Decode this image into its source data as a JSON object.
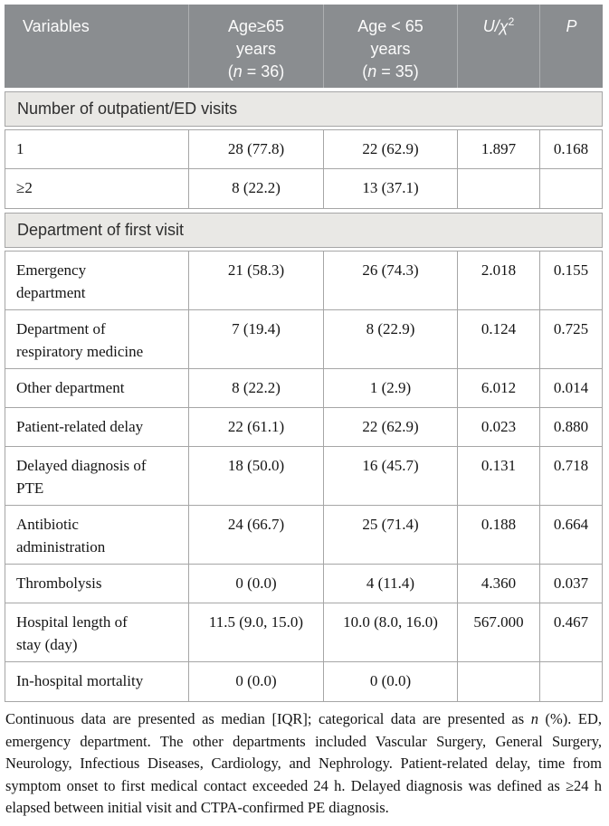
{
  "colors": {
    "header_bg": "#8a8d90",
    "header_text": "#fbfbfb",
    "section_bg": "#e9e8e5",
    "border": "#a6a6a6",
    "body_text": "#141414"
  },
  "table": {
    "header": {
      "variables": "Variables",
      "group1": {
        "line1": "Age≥65",
        "line2": "years",
        "open": "(",
        "n": "n",
        "rest": " = 36)"
      },
      "group2": {
        "line1": "Age < 65",
        "line2": "years",
        "open": "(",
        "n": "n",
        "rest": " = 35)"
      },
      "stat": {
        "u_chi": "U/χ",
        "sup": "2"
      },
      "p": "P"
    },
    "section1": {
      "title": "Number of outpatient/ED visits"
    },
    "section2": {
      "title": "Department of first visit"
    },
    "rows": [
      {
        "label": "1",
        "age_ge65": "28 (77.8)",
        "age_lt65": "22 (62.9)",
        "stat": "1.897",
        "p": "0.168"
      },
      {
        "label": "≥2",
        "age_ge65": "8 (22.2)",
        "age_lt65": "13 (37.1)",
        "stat": "",
        "p": ""
      },
      {
        "label": "Emergency\ndepartment",
        "age_ge65": "21 (58.3)",
        "age_lt65": "26 (74.3)",
        "stat": "2.018",
        "p": "0.155"
      },
      {
        "label": "Department of\nrespiratory medicine",
        "age_ge65": "7 (19.4)",
        "age_lt65": "8 (22.9)",
        "stat": "0.124",
        "p": "0.725"
      },
      {
        "label": "Other department",
        "age_ge65": "8 (22.2)",
        "age_lt65": "1 (2.9)",
        "stat": "6.012",
        "p": "0.014"
      },
      {
        "label": "Patient-related delay",
        "age_ge65": "22 (61.1)",
        "age_lt65": "22 (62.9)",
        "stat": "0.023",
        "p": "0.880"
      },
      {
        "label": "Delayed diagnosis of\nPTE",
        "age_ge65": "18 (50.0)",
        "age_lt65": "16 (45.7)",
        "stat": "0.131",
        "p": "0.718"
      },
      {
        "label": "Antibiotic\nadministration",
        "age_ge65": "24 (66.7)",
        "age_lt65": "25 (71.4)",
        "stat": "0.188",
        "p": "0.664"
      },
      {
        "label": "Thrombolysis",
        "age_ge65": "0 (0.0)",
        "age_lt65": "4 (11.4)",
        "stat": "4.360",
        "p": "0.037"
      },
      {
        "label": "Hospital length of\nstay (day)",
        "age_ge65": "11.5 (9.0, 15.0)",
        "age_lt65": "10.0 (8.0, 16.0)",
        "stat": "567.000",
        "p": "0.467"
      },
      {
        "label": "In-hospital mortality",
        "age_ge65": "0 (0.0)",
        "age_lt65": "0 (0.0)",
        "stat": "",
        "p": ""
      }
    ]
  },
  "footnote": {
    "part1": "Continuous data are presented as median [IQR]; categorical data are presented as ",
    "n_italic": "n",
    "part2": " (%). ED, emergency department. The other departments included Vascular Surgery, General Surgery, Neurology, Infectious Diseases, Cardiology, and Nephrology. Patient-related delay, time from symptom onset to first medical contact exceeded 24 h. Delayed diagnosis was defined as ≥24 h elapsed between initial visit and CTPA-confirmed PE diagnosis."
  }
}
